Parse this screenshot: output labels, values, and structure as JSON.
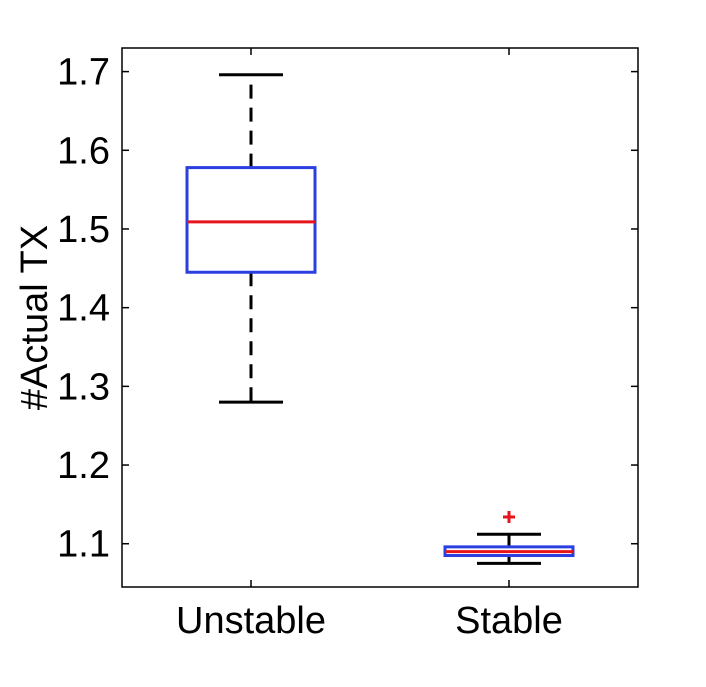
{
  "chart_data": {
    "type": "box",
    "title": "",
    "xlabel": "",
    "ylabel": "#Actual TX",
    "categories": [
      "Unstable",
      "Stable"
    ],
    "ylim": [
      1.045,
      1.73
    ],
    "yticks": [
      1.1,
      1.2,
      1.3,
      1.4,
      1.5,
      1.6,
      1.7
    ],
    "ytick_labels": [
      "1.1",
      "1.2",
      "1.3",
      "1.4",
      "1.5",
      "1.6",
      "1.7"
    ],
    "grid": false,
    "boxes": [
      {
        "category": "Unstable",
        "whisker_low": 1.28,
        "q1": 1.445,
        "median": 1.509,
        "q3": 1.578,
        "whisker_high": 1.696,
        "outliers": []
      },
      {
        "category": "Stable",
        "whisker_low": 1.075,
        "q1": 1.085,
        "median": 1.09,
        "q3": 1.096,
        "whisker_high": 1.112,
        "outliers": [
          1.134
        ]
      }
    ],
    "colors": {
      "box": "#2b3fe0",
      "median": "#e8141c",
      "whisker": "#000000",
      "outlier": "#e8141c",
      "axes": "#000000"
    }
  }
}
